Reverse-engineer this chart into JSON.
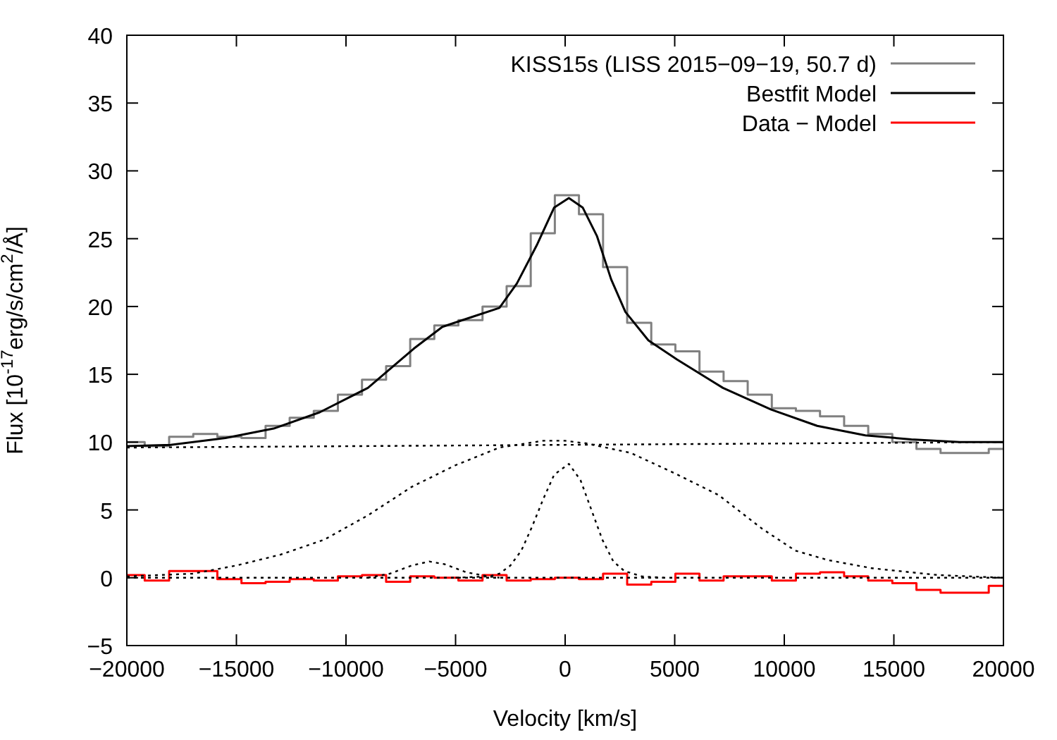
{
  "chart_data": {
    "type": "line",
    "xlabel": "Velocity [km/s]",
    "ylabel": "Flux [10$^{-17}$erg/s/cm$^{2}$/Å]",
    "xlim": [
      -20000,
      20000
    ],
    "ylim": [
      -5,
      40
    ],
    "xticks": [
      {
        "value": -20000,
        "label": "−20000"
      },
      {
        "value": -15000,
        "label": "−15000"
      },
      {
        "value": -10000,
        "label": "−10000"
      },
      {
        "value": -5000,
        "label": "−5000"
      },
      0,
      5000,
      10000,
      15000,
      20000
    ],
    "yticks": [
      {
        "value": -5,
        "label": "−5"
      },
      0,
      5,
      10,
      15,
      20,
      25,
      30,
      35,
      40
    ],
    "legend": "top right",
    "grid": false,
    "series": [
      {
        "name": "KISS15s (LISS 2015−09−19, 50.7 d)",
        "type": "step",
        "color": "#808080",
        "x": [
          -20000,
          -19185,
          -18070,
          -16970,
          -15870,
          -14770,
          -13670,
          -12570,
          -11470,
          -10370,
          -9270,
          -8170,
          -7070,
          -5970,
          -4870,
          -3770,
          -2670,
          -1570,
          -470,
          630,
          1730,
          2830,
          3930,
          5030,
          6130,
          7230,
          8330,
          9430,
          10530,
          11630,
          12730,
          13830,
          14930,
          16030,
          17130,
          18230,
          19330,
          20000
        ],
        "values": [
          10.0,
          9.7,
          10.4,
          10.6,
          10.4,
          10.3,
          11.2,
          11.8,
          12.3,
          13.5,
          14.6,
          15.6,
          17.6,
          18.6,
          19.0,
          20.0,
          21.5,
          25.4,
          28.2,
          26.8,
          22.9,
          18.8,
          17.2,
          16.7,
          15.2,
          14.5,
          13.5,
          12.5,
          12.3,
          11.9,
          11.2,
          10.6,
          10.0,
          9.5,
          9.2,
          9.2,
          9.5,
          9.5
        ]
      },
      {
        "name": "Bestfit Model",
        "color": "#000000",
        "x": [
          -20000,
          -18000,
          -15500,
          -13300,
          -11200,
          -9000,
          -6900,
          -5600,
          -4300,
          -3000,
          -2200,
          -1300,
          -500,
          170,
          800,
          1450,
          2100,
          2750,
          3800,
          5100,
          7200,
          9400,
          11500,
          13700,
          15800,
          18000,
          20000
        ],
        "values": [
          9.7,
          9.8,
          10.3,
          11.0,
          12.2,
          14.0,
          16.9,
          18.5,
          19.2,
          19.9,
          21.7,
          24.5,
          27.3,
          28.0,
          27.3,
          25.2,
          22.0,
          19.6,
          17.5,
          16.1,
          14.0,
          12.4,
          11.2,
          10.5,
          10.2,
          10.0,
          10.0
        ]
      },
      {
        "name": "Data − Model",
        "type": "step",
        "color": "#ff0000",
        "x": [
          -20000,
          -19185,
          -18070,
          -16970,
          -15870,
          -14770,
          -13670,
          -12570,
          -11470,
          -10370,
          -9270,
          -8170,
          -7070,
          -5970,
          -4870,
          -3770,
          -2670,
          -1570,
          -470,
          630,
          1730,
          2830,
          3930,
          5030,
          6130,
          7230,
          8330,
          9430,
          10530,
          11630,
          12730,
          13830,
          14930,
          16030,
          17130,
          18230,
          19330,
          20000
        ],
        "values": [
          0.2,
          -0.2,
          0.5,
          0.5,
          -0.1,
          -0.4,
          -0.3,
          -0.1,
          -0.2,
          0.1,
          0.2,
          -0.3,
          0.1,
          0,
          -0.2,
          0.2,
          -0.2,
          -0.1,
          0,
          -0.1,
          0.3,
          -0.5,
          -0.3,
          0.3,
          -0.2,
          0.1,
          0.1,
          -0.2,
          0.3,
          0.4,
          0.1,
          -0.2,
          -0.4,
          -0.9,
          -1.1,
          -1.1,
          -0.6,
          -0.6
        ]
      },
      {
        "color": "#000000",
        "line_style": "dotted",
        "x": [
          -20000,
          20000
        ],
        "values": [
          9.6,
          10.0
        ]
      },
      {
        "color": "#000000",
        "line_style": "dotted",
        "x": [
          -20000,
          20000
        ],
        "values": [
          0,
          0
        ]
      },
      {
        "color": "#000000",
        "line_style": "dotted",
        "x": [
          -20000,
          -17000,
          -15000,
          -13000,
          -11000,
          -9000,
          -7000,
          -5000,
          -3000,
          -1000,
          0,
          1000,
          3000,
          5000,
          7000,
          9000,
          10500,
          12000,
          14000,
          17000,
          20000
        ],
        "values": [
          0.1,
          0.3,
          0.9,
          1.7,
          2.8,
          4.6,
          6.7,
          8.3,
          9.6,
          10.1,
          10.1,
          9.9,
          9.2,
          7.7,
          6.1,
          3.6,
          2.0,
          1.3,
          0.7,
          0.2,
          0
        ]
      },
      {
        "color": "#000000",
        "line_style": "dotted",
        "x": [
          -9000,
          -8000,
          -7000,
          -6200,
          -5500,
          -4500,
          -3500,
          -3000
        ],
        "values": [
          0,
          0.3,
          0.9,
          1.2,
          1.0,
          0.4,
          0.1,
          0
        ]
      },
      {
        "color": "#000000",
        "line_style": "dotted",
        "x": [
          -5000,
          -3500,
          -3000,
          -2500,
          -2000,
          -1500,
          -1000,
          -500,
          170,
          700,
          1200,
          1700,
          2200,
          2700,
          3500,
          4500
        ],
        "values": [
          0,
          0.1,
          0.3,
          0.9,
          2.0,
          3.8,
          5.8,
          7.6,
          8.4,
          7.2,
          5.0,
          2.8,
          1.2,
          0.5,
          0.1,
          0
        ]
      }
    ]
  }
}
